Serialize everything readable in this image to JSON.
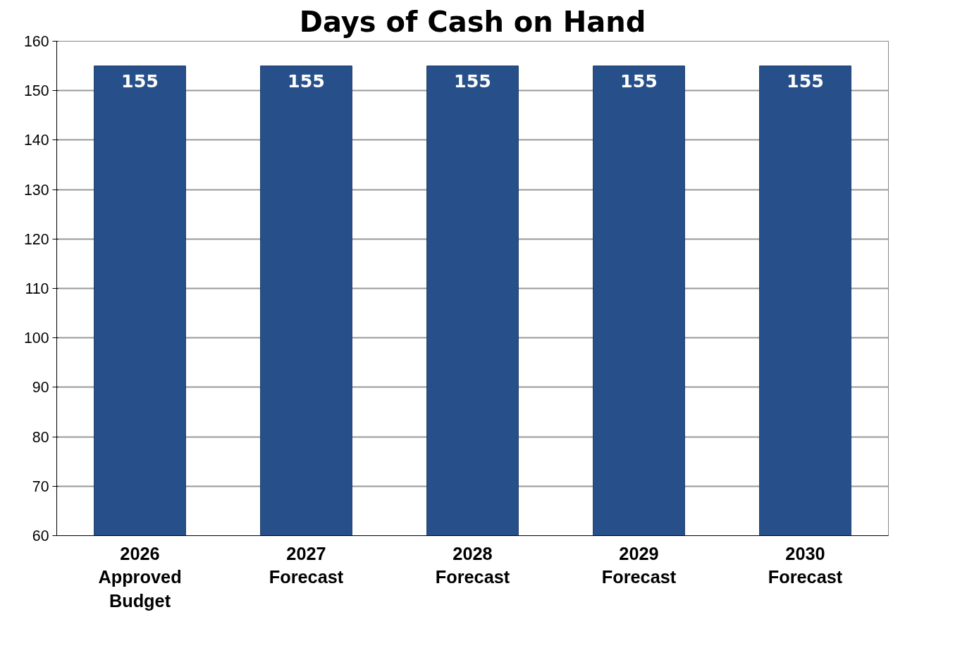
{
  "chart_data": {
    "type": "bar",
    "title": "Days of Cash on Hand",
    "categories": [
      "2026\nApproved\nBudget",
      "2027\nForecast",
      "2028\nForecast",
      "2029\nForecast",
      "2030\nForecast"
    ],
    "values": [
      155,
      155,
      155,
      155,
      155
    ],
    "color": "#27508a",
    "data_labels": true,
    "ylim": [
      60,
      160
    ],
    "yticks": [
      60,
      70,
      80,
      90,
      100,
      110,
      120,
      130,
      140,
      150,
      160
    ],
    "grid": "y"
  }
}
